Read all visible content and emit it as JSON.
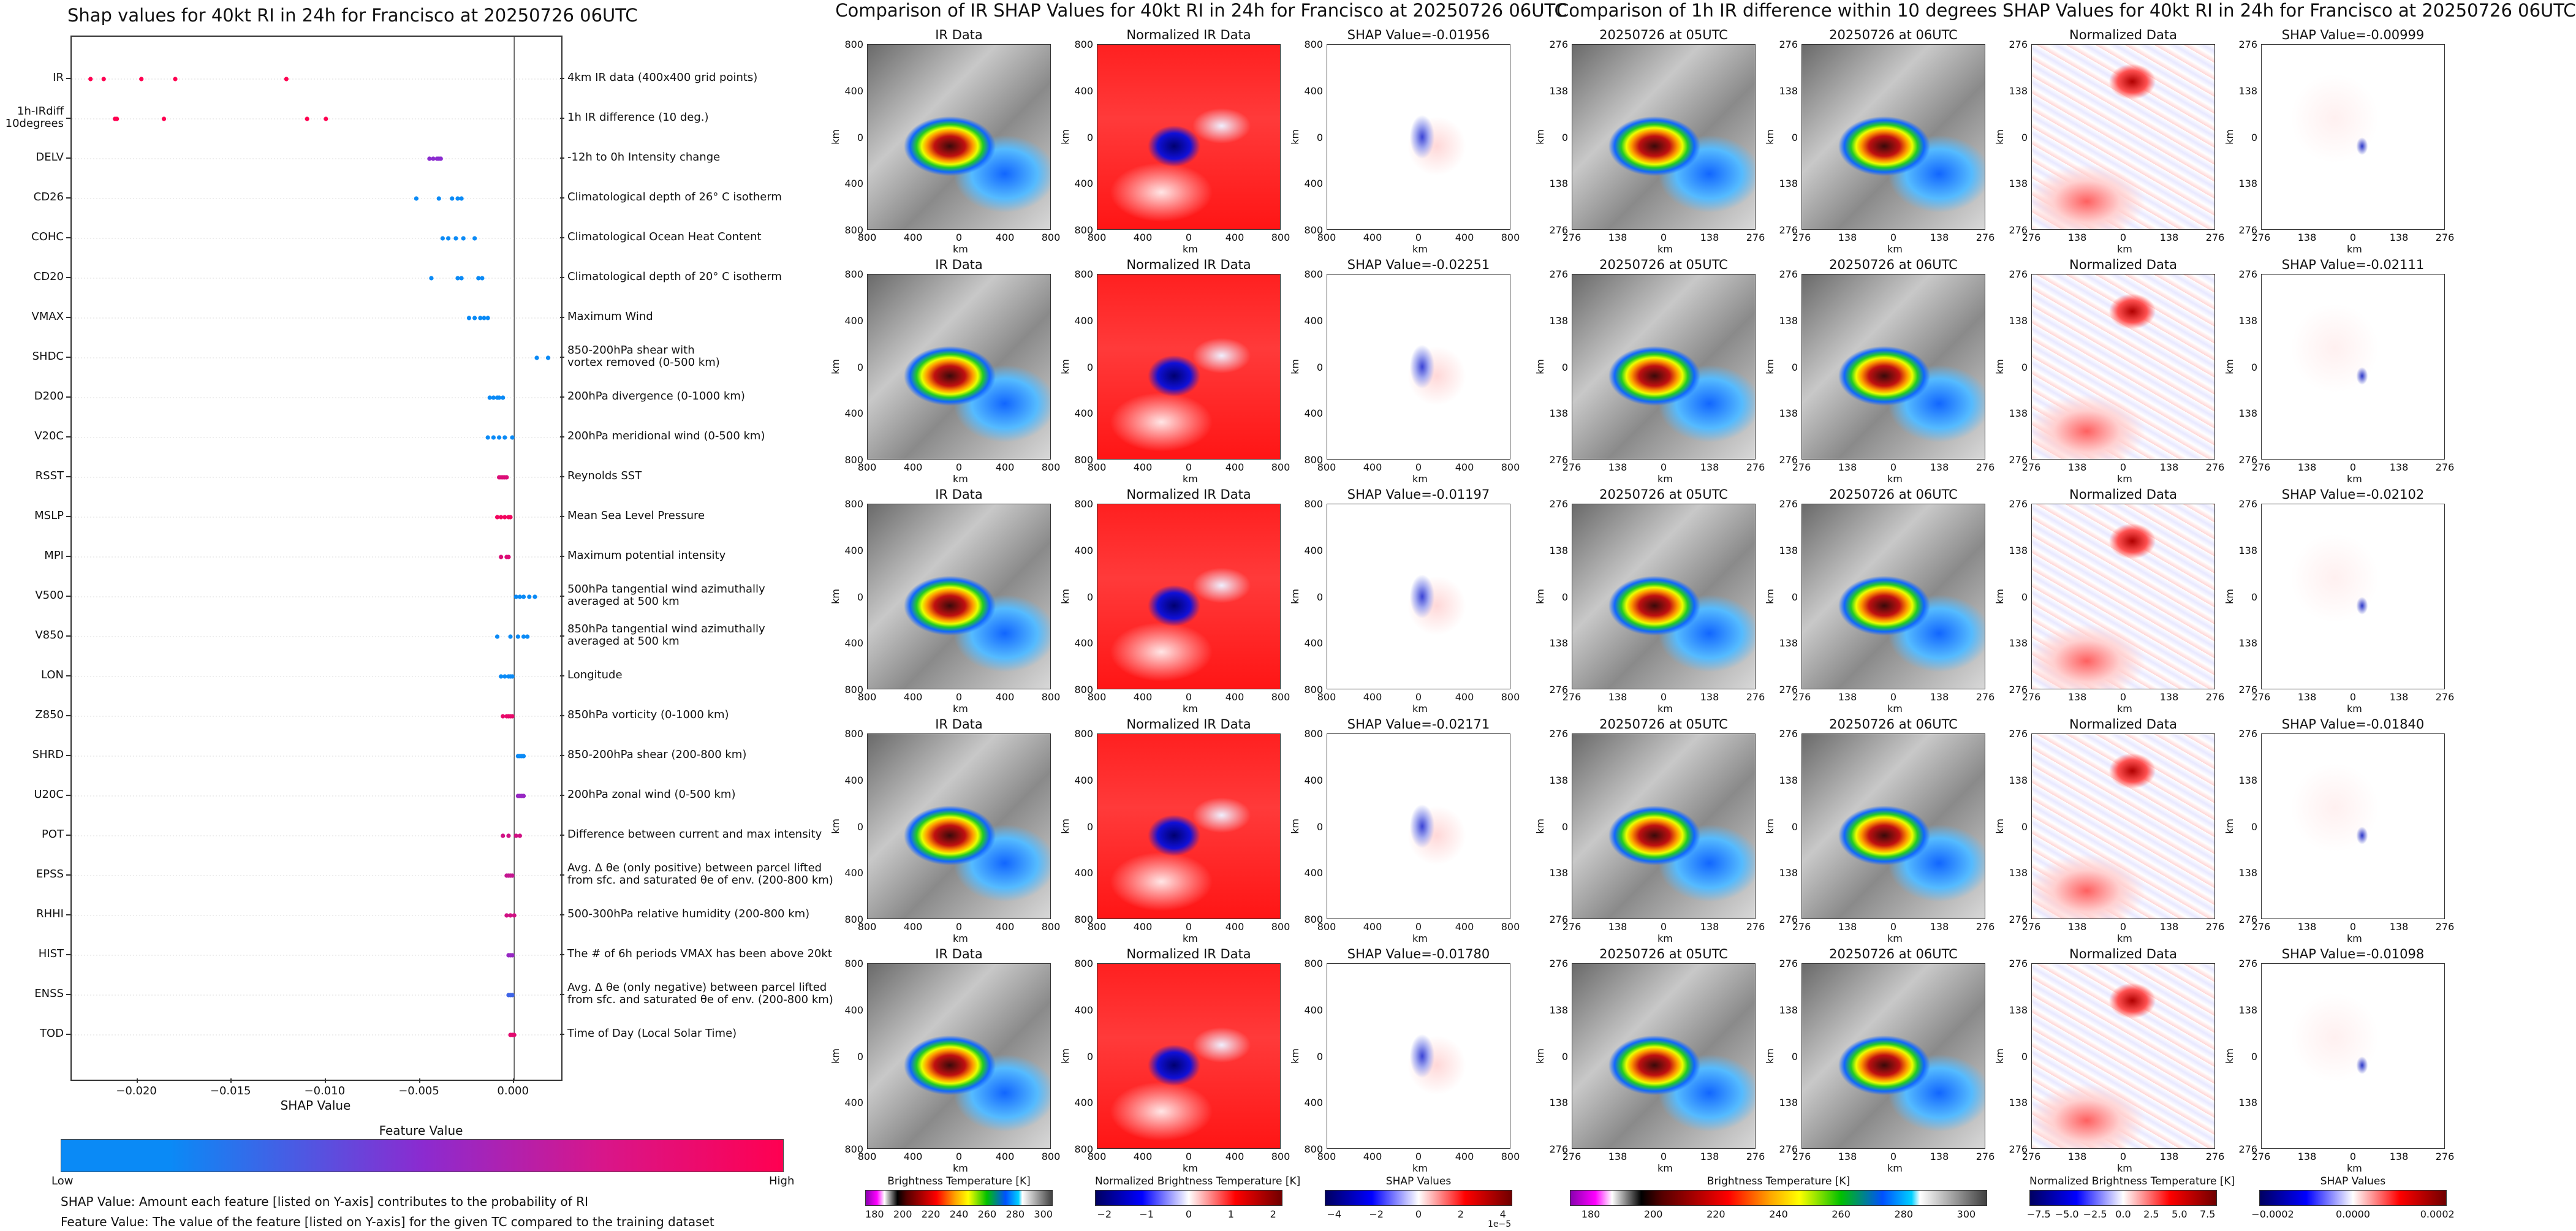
{
  "chart_data": [
    {
      "type": "scatter",
      "title": "Shap values for 40kt RI in 24h for Francisco at 20250726 06UTC",
      "xlabel": "SHAP Value",
      "xlim": [
        -0.0235,
        0.0025
      ],
      "xticks": [
        "−0.020",
        "−0.015",
        "−0.010",
        "−0.005",
        "0.000"
      ],
      "xtick_values": [
        -0.02,
        -0.015,
        -0.01,
        -0.005,
        0.0
      ],
      "features": [
        {
          "name": "IR",
          "description": "4km IR data (400x400 grid points)",
          "shap": [
            -0.0225,
            -0.0218,
            -0.0198,
            -0.018,
            -0.0121
          ]
        },
        {
          "name": "1h-IRdiff\n10degrees",
          "description": "1h IR difference (10 deg.)",
          "shap": [
            -0.0212,
            -0.0211,
            -0.0186,
            -0.011,
            -0.01
          ]
        },
        {
          "name": "DELV",
          "description": "-12h to 0h Intensity change",
          "shap": [
            -0.0045,
            -0.0043,
            -0.0041,
            -0.004,
            -0.0039
          ]
        },
        {
          "name": "CD26",
          "description": "Climatological depth of 26° C isotherm",
          "shap": [
            -0.0052,
            -0.004,
            -0.0033,
            -0.003,
            -0.0028
          ]
        },
        {
          "name": "COHC",
          "description": "Climatological Ocean Heat Content",
          "shap": [
            -0.0038,
            -0.0035,
            -0.0031,
            -0.0027,
            -0.0021
          ]
        },
        {
          "name": "CD20",
          "description": "Climatological depth of 20° C isotherm",
          "shap": [
            -0.0044,
            -0.003,
            -0.0028,
            -0.0019,
            -0.0017
          ]
        },
        {
          "name": "VMAX",
          "description": "Maximum Wind",
          "shap": [
            -0.0024,
            -0.0021,
            -0.0018,
            -0.0016,
            -0.0014
          ]
        },
        {
          "name": "SHDC",
          "description": "850-200hPa shear with\nvortex removed (0-500 km)",
          "shap": [
            0.0012,
            0.0018
          ]
        },
        {
          "name": "D200",
          "description": "200hPa divergence (0-1000 km)",
          "shap": [
            -0.0013,
            -0.0011,
            -0.0009,
            -0.0008,
            -0.0006
          ]
        },
        {
          "name": "V20C",
          "description": "200hPa meridional wind (0-500 km)",
          "shap": [
            -0.0014,
            -0.0011,
            -0.0008,
            -0.0005,
            -0.0001
          ]
        },
        {
          "name": "RSST",
          "description": "Reynolds SST",
          "shap": [
            -0.0008,
            -0.0007,
            -0.0006,
            -0.0005,
            -0.0004
          ]
        },
        {
          "name": "MSLP",
          "description": "Mean Sea Level Pressure",
          "shap": [
            -0.0009,
            -0.0007,
            -0.0005,
            -0.0003,
            -0.0002
          ]
        },
        {
          "name": "MPI",
          "description": "Maximum potential intensity",
          "shap": [
            -0.0007,
            -0.0004,
            -0.0003
          ]
        },
        {
          "name": "V500",
          "description": "500hPa tangential wind azimuthally\naveraged at 500 km",
          "shap": [
            0.0001,
            0.0003,
            0.0005,
            0.0008,
            0.0011
          ]
        },
        {
          "name": "V850",
          "description": "850hPa tangential wind azimuthally\naveraged at 500 km",
          "shap": [
            -0.0009,
            -0.0002,
            0.0002,
            0.0005,
            0.0007
          ]
        },
        {
          "name": "LON",
          "description": "Longitude",
          "shap": [
            -0.0007,
            -0.0005,
            -0.0003,
            -0.0002,
            -0.0001
          ]
        },
        {
          "name": "Z850",
          "description": "850hPa vorticity (0-1000 km)",
          "shap": [
            -0.0006,
            -0.0004,
            -0.0003,
            -0.0002,
            -0.0001
          ]
        },
        {
          "name": "SHRD",
          "description": "850-200hPa shear (200-800 km)",
          "shap": [
            0.0002,
            0.0003,
            0.0004,
            0.0005
          ]
        },
        {
          "name": "U20C",
          "description": "200hPa zonal wind (0-500 km)",
          "shap": [
            0.0002,
            0.0003,
            0.0004,
            0.0005
          ]
        },
        {
          "name": "POT",
          "description": "Difference between current and max intensity",
          "shap": [
            -0.0006,
            -0.0003,
            0.0001,
            0.0003
          ]
        },
        {
          "name": "EPSS",
          "description": "Avg. Δ θe (only positive) between parcel lifted\nfrom sfc. and saturated θe of env. (200-800 km)",
          "shap": [
            -0.0004,
            -0.0003,
            -0.0002,
            -0.0001
          ]
        },
        {
          "name": "RHHI",
          "description": "500-300hPa relative humidity (200-800 km)",
          "shap": [
            -0.0004,
            -0.0002,
            0.0
          ]
        },
        {
          "name": "HIST",
          "description": "The # of 6h periods VMAX has been above 20kt",
          "shap": [
            -0.0003,
            -0.0002,
            -0.0001
          ]
        },
        {
          "name": "ENSS",
          "description": "Avg. Δ θe (only negative) between parcel lifted\nfrom sfc. and saturated θe of env. (200-800 km)",
          "shap": [
            -0.0003,
            -0.0002,
            -0.0001
          ]
        },
        {
          "name": "TOD",
          "description": "Time of Day (Local Solar Time)",
          "shap": [
            -0.0002,
            -0.0001,
            0.0
          ]
        }
      ],
      "colorbar": {
        "label": "Feature Value",
        "low": "Low",
        "high": "High",
        "low_color": "#0a8af6",
        "mid_color": "#8b2bd0",
        "high_color": "#ff0051"
      }
    },
    {
      "type": "heatmap",
      "title": "Comparison of IR SHAP Values for 40kt RI in 24h for Francisco at 20250726 06UTC",
      "axis_label": "km",
      "ticks": [
        "800",
        "400",
        "0",
        "400",
        "800"
      ],
      "columns": [
        "IR Data",
        "Normalized IR Data"
      ],
      "shap_titles": [
        "SHAP Value=-0.01956",
        "SHAP Value=-0.02251",
        "SHAP Value=-0.01197",
        "SHAP Value=-0.02171",
        "SHAP Value=-0.01780"
      ],
      "shap_values": [
        -0.01956,
        -0.02251,
        -0.01197,
        -0.02171,
        -0.0178
      ]
    },
    {
      "type": "heatmap",
      "title": "Comparison of 1h IR difference within 10 degrees SHAP Values for 40kt RI in 24h for Francisco at 20250726 06UTC",
      "axis_label": "km",
      "ticks": [
        "276",
        "138",
        "0",
        "138",
        "276"
      ],
      "columns": [
        "20250726 at 05UTC",
        "20250726 at 06UTC",
        "Normalized Data"
      ],
      "shap_titles": [
        "SHAP Value=-0.00999",
        "SHAP Value=-0.02111",
        "SHAP Value=-0.02102",
        "SHAP Value=-0.01840",
        "SHAP Value=-0.01098"
      ],
      "shap_values": [
        -0.00999,
        -0.02111,
        -0.02102,
        -0.0184,
        -0.01098
      ]
    }
  ],
  "notes": [
    "SHAP Value: Amount each feature [listed on Y-axis] contributes to the probability of RI",
    "Feature Value: The value of the feature [listed on Y-axis] for the given TC compared to the training dataset"
  ],
  "colorbars": [
    {
      "label": "Brightness Temperature [K]",
      "ticks": [
        "180",
        "200",
        "220",
        "240",
        "260",
        "280",
        "300"
      ]
    },
    {
      "label": "Normalized Brightness Temperature [K]",
      "ticks": [
        "−2",
        "−1",
        "0",
        "1",
        "2"
      ]
    },
    {
      "label": "SHAP Values",
      "ticks": [
        "−4",
        "−2",
        "0",
        "2",
        "4"
      ],
      "exponent": "1e−5"
    },
    {
      "label": "Brightness Temperature [K]",
      "ticks": [
        "180",
        "200",
        "220",
        "240",
        "260",
        "280",
        "300"
      ]
    },
    {
      "label": "Normalized Brightness Temperature [K]",
      "ticks": [
        "−7.5",
        "−5.0",
        "−2.5",
        "0.0",
        "2.5",
        "5.0",
        "7.5"
      ]
    },
    {
      "label": "SHAP Values",
      "ticks": [
        "−0.0002",
        "0.0000",
        "0.0002"
      ]
    }
  ],
  "colors": {
    "feature_low": "#0a8af6",
    "feature_high": "#ff0051",
    "shap_positive": "#d21d1d",
    "shap_negative": "#1d33c9",
    "ir_gray_dark": "#7e7e7e",
    "ir_gray_light": "#e6e6e6",
    "normalized_red": "#ff1f1f"
  }
}
